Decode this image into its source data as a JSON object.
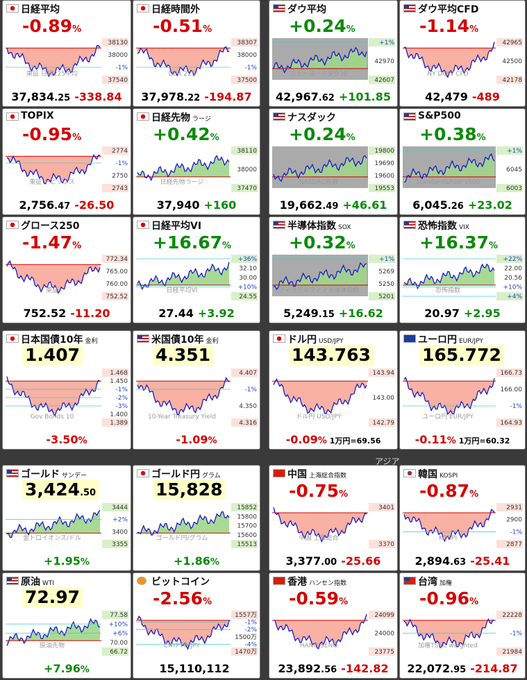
{
  "region_label": "アジア",
  "tiles": [
    {
      "kind": "change",
      "flag": "jp",
      "name": "日経平均",
      "head": "-0.89%",
      "axis": [
        "38130",
        "38000",
        "-1%",
        "37540"
      ],
      "wm": "東証 日経225平均",
      "price": "37,834.25",
      "chg": "-338.84"
    },
    {
      "kind": "change",
      "flag": "jp",
      "name": "日経時間外",
      "head": "-0.51%",
      "axis": [
        "38307",
        "38000",
        "-1%",
        "37500"
      ],
      "wm": "DER 225",
      "price": "37,978.22",
      "chg": "-194.87"
    },
    {
      "kind": "change",
      "flag": "us",
      "name": "ダウ平均",
      "head": "+0.24%",
      "axis": [
        "+1%",
        "42970",
        "42607"
      ],
      "wm": "ニューヨークダウ30",
      "price": "42,967.62",
      "chg": "+101.85"
    },
    {
      "kind": "change",
      "flag": "us",
      "name": "ダウ平均CFD",
      "head": "-1.14%",
      "axis": [
        "42965",
        "42500",
        "42178"
      ],
      "wm": "NY DOW CFD",
      "price": "42,479",
      "chg": "-489"
    },
    {
      "kind": "change",
      "flag": "jp",
      "name": "TOPIX",
      "head": "-0.95%",
      "axis": [
        "2774",
        "-1%",
        "2750",
        "2743"
      ],
      "wm": "東証 トピックス",
      "price": "2,756.47",
      "chg": "-26.50"
    },
    {
      "kind": "change",
      "flag": "jp",
      "name": "日経先物",
      "sub": "ラージ",
      "head": "+0.42%",
      "axis": [
        "38110",
        "38000",
        "37470"
      ],
      "wm": "日経先物ラージ",
      "price": "37,940",
      "chg": "+160"
    },
    {
      "kind": "change",
      "flag": "us",
      "name": "ナスダック",
      "head": "+0.24%",
      "axis": [
        "19800",
        "19690",
        "19600",
        "19553"
      ],
      "wm": "NASDAQ指数",
      "price": "19,662.49",
      "chg": "+46.61"
    },
    {
      "kind": "change",
      "flag": "us",
      "name": "S&P500",
      "head": "+0.38%",
      "axis": [
        "+1%",
        "6045",
        "6003"
      ],
      "wm": "Standard&Poor's500",
      "price": "6,045.26",
      "chg": "+23.02"
    },
    {
      "kind": "change",
      "flag": "jp",
      "name": "グロース250",
      "head": "-1.47%",
      "axis": [
        "772.34",
        "765.00",
        "760.00",
        "752.52"
      ],
      "wm": "東証",
      "price": "752.52",
      "chg": "-11.20"
    },
    {
      "kind": "change",
      "flag": "jp",
      "name": "日経平均VI",
      "head": "+16.67%",
      "axis": [
        "+36%",
        "32.10",
        "30.00",
        "+10%",
        "24.55"
      ],
      "wm": "日経平均VI",
      "price": "27.44",
      "chg": "+3.92"
    },
    {
      "kind": "change",
      "flag": "us",
      "name": "半導体指数",
      "sub": "SOX",
      "head": "+0.32%",
      "axis": [
        "+1%",
        "5269",
        "5250",
        "5201"
      ],
      "wm": "フィラデルフィア半導体指数",
      "price": "5,249.15",
      "chg": "+16.62"
    },
    {
      "kind": "change",
      "flag": "us",
      "name": "恐怖指数",
      "sub": "VIX",
      "head": "+16.37%",
      "axis": [
        "+22%",
        "22.00",
        "20.56",
        "+10%",
        "+4%"
      ],
      "wm": "恐怖指数",
      "price": "20.97",
      "chg": "+2.95"
    },
    {
      "kind": "value",
      "flag": "jp",
      "name": "日本国債10年",
      "sub": "金利",
      "head": "1.407",
      "axis": [
        "1.468",
        "1.450",
        "-1%",
        "-2%",
        "-3%",
        "1.400",
        "1.389"
      ],
      "wm": "Gov Bonds 10",
      "chg": "-3.50%"
    },
    {
      "kind": "value",
      "flag": "us",
      "name": "米国債10年",
      "sub": "金利",
      "head": "4.351",
      "axis": [
        "4.407",
        "-1%",
        "4.350",
        "4.316"
      ],
      "wm": "10-Year Treasury Yield",
      "chg": "-1.09%"
    },
    {
      "kind": "value",
      "flag": "jp",
      "name": "ドル円",
      "sub": "USD/JPY",
      "head": "143.763",
      "axis": [
        "143.94",
        "143.00",
        "142.79"
      ],
      "wm": "ドル円 USD/JPY",
      "chg": "-0.09%",
      "extra": "1万円=69.56"
    },
    {
      "kind": "value",
      "flag": "eu",
      "name": "ユーロ円",
      "sub": "EUR/JPY",
      "head": "165.772",
      "axis": [
        "166.73",
        "166.00",
        "-1%",
        "164.93"
      ],
      "wm": "ユーロ円 EUR/JPY",
      "chg": "-0.11%",
      "extra": "1万円=60.32"
    },
    {
      "kind": "value",
      "flag": "us",
      "name": "ゴールド",
      "sub": "サンデー",
      "head": "3,424.50",
      "axis": [
        "3444",
        "+2%",
        "3400",
        "3355"
      ],
      "wm": "金トロイオンス/ドル",
      "chg": "+1.95%"
    },
    {
      "kind": "value",
      "flag": "jp",
      "name": "ゴールド円",
      "sub": "グラム",
      "head": "15,828",
      "axis": [
        "15852",
        "15800",
        "15700",
        "15600",
        "15513"
      ],
      "wm": "ゴールド円/グラム",
      "chg": "+1.86%"
    },
    {
      "kind": "change",
      "flag": "cn",
      "name": "中国",
      "sub": "上海総合指数",
      "head": "-0.75%",
      "axis": [
        "3401",
        "3370"
      ],
      "wm": "中国 上海総合",
      "price": "3,377.00",
      "chg": "-25.66"
    },
    {
      "kind": "change",
      "flag": "kr",
      "name": "韓国",
      "sub": "KOSPI",
      "head": "-0.87%",
      "axis": [
        "2931",
        "2900",
        "-1%",
        "2877"
      ],
      "wm": "KOSPI",
      "price": "2,894.63",
      "chg": "-25.41"
    },
    {
      "kind": "value",
      "flag": "us",
      "name": "原油",
      "sub": "WTI",
      "head": "72.97",
      "axis": [
        "77.58",
        "+10%",
        "+6%",
        "70.00",
        "66.72"
      ],
      "wm": "原油先物",
      "chg": "+7.96%"
    },
    {
      "kind": "change",
      "flag": "btc",
      "name": "ビットコイン",
      "head": "-2.56%",
      "axis": [
        "1557万",
        "-1%",
        "-2%",
        "1500万",
        "-4%",
        "1470万"
      ],
      "wm": "CRYPTO/JPY",
      "price": "15,110,112"
    },
    {
      "kind": "change",
      "flag": "hk",
      "name": "香港",
      "sub": "ハンセン指数",
      "head": "-0.59%",
      "axis": [
        "24099",
        "24000",
        "23775"
      ],
      "wm": "HANG SENG",
      "price": "23,892.56",
      "chg": "-142.82"
    },
    {
      "kind": "change",
      "flag": "tw",
      "name": "台湾",
      "sub": "加権",
      "head": "-0.96%",
      "axis": [
        "22228",
        "-1%",
        "21984"
      ],
      "wm": "加権TSEC weighted",
      "price": "22,072.95",
      "chg": "-214.87"
    }
  ]
}
